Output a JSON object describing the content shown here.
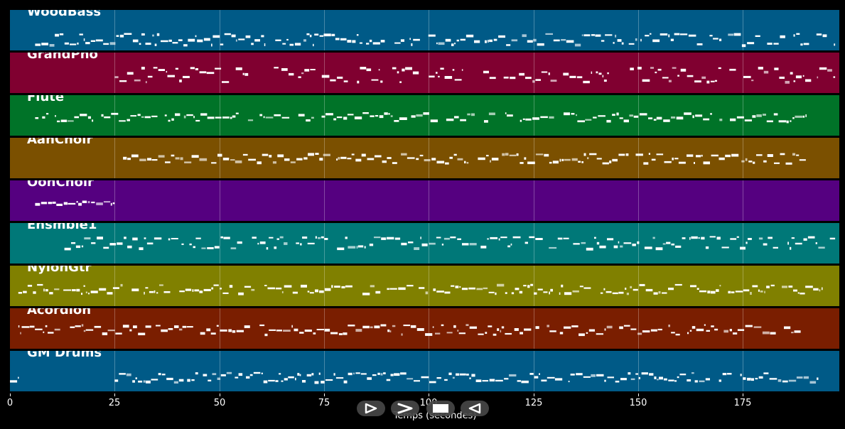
{
  "chart_data": {
    "type": "piano-roll",
    "xlabel": "Temps (secondes)",
    "xlim": [
      0,
      198
    ],
    "x_ticks": [
      0,
      25,
      50,
      75,
      100,
      125,
      150,
      175
    ],
    "grid": true,
    "tracks": [
      {
        "name": "WoodBass",
        "color": "#005a87",
        "note_rows": [
          0.6,
          0.72,
          0.82
        ],
        "active_ranges": [
          [
            6,
            197
          ]
        ]
      },
      {
        "name": "GrandPno",
        "color": "#800030",
        "note_rows": [
          0.38,
          0.48,
          0.58,
          0.68
        ],
        "active_ranges": [
          [
            25,
            58
          ],
          [
            63,
            108
          ],
          [
            113,
            143
          ],
          [
            148,
            197
          ]
        ]
      },
      {
        "name": "Flute",
        "color": "#007328",
        "note_rows": [
          0.45,
          0.52,
          0.6
        ],
        "active_ranges": [
          [
            6,
            190
          ]
        ]
      },
      {
        "name": "AahChoir",
        "color": "#7b5000",
        "note_rows": [
          0.4,
          0.5,
          0.58
        ],
        "active_ranges": [
          [
            27,
            190
          ]
        ]
      },
      {
        "name": "OohChoir",
        "color": "#550080",
        "note_rows": [
          0.5,
          0.55
        ],
        "active_ranges": [
          [
            6,
            25
          ]
        ]
      },
      {
        "name": "Ensmble1",
        "color": "#007878",
        "note_rows": [
          0.35,
          0.48,
          0.58
        ],
        "active_ranges": [
          [
            13,
            197
          ]
        ]
      },
      {
        "name": "NylonGtr",
        "color": "#808000",
        "note_rows": [
          0.48,
          0.56,
          0.64
        ],
        "active_ranges": [
          [
            2,
            194
          ]
        ]
      },
      {
        "name": "Acordion",
        "color": "#7a1e00",
        "note_rows": [
          0.42,
          0.52,
          0.6
        ],
        "active_ranges": [
          [
            2,
            190
          ]
        ]
      },
      {
        "name": "GM Drums",
        "color": "#005a87",
        "note_rows": [
          0.55,
          0.65,
          0.72
        ],
        "active_ranges": [
          [
            0,
            2
          ],
          [
            25,
            193
          ]
        ]
      }
    ]
  },
  "controls": [
    {
      "icon": "play-outline-icon"
    },
    {
      "icon": "fast-forward-icon"
    },
    {
      "icon": "stop-icon"
    },
    {
      "icon": "rewind-icon"
    }
  ]
}
